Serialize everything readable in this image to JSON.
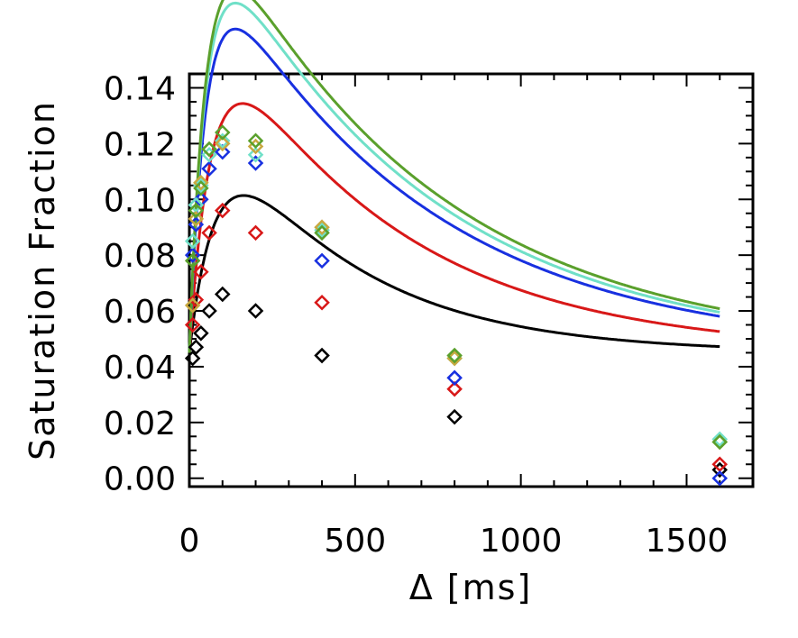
{
  "chart_data": {
    "type": "scatter",
    "title": "",
    "xlabel": "Δ [ms]",
    "ylabel": "Saturation Fraction",
    "xlim": [
      0,
      1700
    ],
    "ylim": [
      -0.003,
      0.145
    ],
    "xticks": [
      0,
      500,
      1000,
      1500
    ],
    "xtick_labels": [
      "0",
      "500",
      "1000",
      "1500"
    ],
    "yticks": [
      0.0,
      0.02,
      0.04,
      0.06,
      0.08,
      0.1,
      0.12,
      0.14
    ],
    "ytick_labels": [
      "0.00",
      "0.02",
      "0.04",
      "0.06",
      "0.08",
      "0.10",
      "0.12",
      "0.14"
    ],
    "grid": false,
    "legend": "none",
    "x": [
      10,
      20,
      35,
      60,
      100,
      200,
      400,
      800,
      1600
    ],
    "series": [
      {
        "name": "black",
        "color": "#000000",
        "values": [
          0.043,
          0.047,
          0.052,
          0.06,
          0.066,
          0.06,
          0.044,
          0.022,
          0.003
        ],
        "fit": {
          "A": 0.1033,
          "k1": 0.0125,
          "k2": 0.0024,
          "y0": 0.045
        }
      },
      {
        "name": "red",
        "color": "#d81818",
        "values": [
          0.055,
          0.064,
          0.074,
          0.088,
          0.096,
          0.088,
          0.063,
          0.032,
          0.005
        ],
        "fit": {
          "A": 0.1356,
          "k1": 0.015,
          "k2": 0.0018,
          "y0": 0.045
        }
      },
      {
        "name": "blue",
        "color": "#1830e0",
        "values": [
          0.08,
          0.091,
          0.1,
          0.111,
          0.117,
          0.113,
          0.078,
          0.036,
          0.0
        ],
        "fit": {
          "A": 0.156,
          "k1": 0.02,
          "k2": 0.00155,
          "y0": 0.045
        }
      },
      {
        "name": "cyan",
        "color": "#70e0c8",
        "values": [
          0.085,
          0.098,
          0.105,
          0.116,
          0.121,
          0.116,
          0.089,
          0.043,
          0.014
        ],
        "fit": {
          "A": 0.168,
          "k1": 0.02,
          "k2": 0.00153,
          "y0": 0.045
        }
      },
      {
        "name": "gold",
        "color": "#c8a840",
        "values": [
          0.062,
          0.093,
          0.106,
          0.118,
          0.12,
          0.119,
          0.09,
          0.043,
          0.013
        ],
        "fit": null
      },
      {
        "name": "green",
        "color": "#5aa02c",
        "values": [
          0.078,
          0.096,
          0.104,
          0.118,
          0.124,
          0.121,
          0.088,
          0.044,
          0.013
        ],
        "fit": {
          "A": 0.174,
          "k1": 0.02,
          "k2": 0.0015,
          "y0": 0.045
        }
      }
    ]
  }
}
